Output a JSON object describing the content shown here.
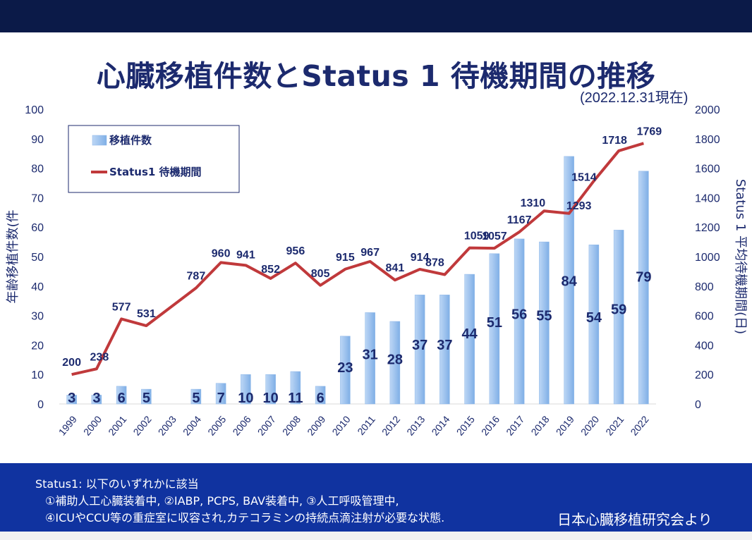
{
  "title": "心臓移植件数とStatus 1 待機期間の推移",
  "date_note": "(2022.12.31現在)",
  "footer": {
    "line1": "Status1: 以下のいずれかに該当",
    "line2": "①補助人工心臓装着中, ②IABP, PCPS, BAV装着中, ③人工呼吸管理中,",
    "line3": "④ICUやCCU等の重症室に収容され,カテコラミンの持続点滴注射が必要な状態.",
    "source": "日本心臓移植研究会より"
  },
  "colors": {
    "bar": "#9fc3ee",
    "line": "#c0393b",
    "text": "#1c2a6e",
    "band": "#0b1a48",
    "footer": "#1033a0"
  },
  "chart_data": {
    "type": "bar+line",
    "categories": [
      "1999",
      "2000",
      "2001",
      "2002",
      "2003",
      "2004",
      "2005",
      "2006",
      "2007",
      "2008",
      "2009",
      "2010",
      "2011",
      "2012",
      "2013",
      "2014",
      "2015",
      "2016",
      "2017",
      "2018",
      "2019",
      "2020",
      "2021",
      "2022"
    ],
    "series": [
      {
        "name": "移植件数",
        "type": "bar",
        "axis": "left",
        "values": [
          3,
          3,
          6,
          5,
          0,
          5,
          7,
          10,
          10,
          11,
          6,
          23,
          31,
          28,
          37,
          37,
          44,
          51,
          56,
          55,
          84,
          54,
          59,
          79
        ],
        "labels": [
          "3",
          "3",
          "6",
          "5",
          null,
          "5",
          "7",
          "10",
          "10",
          "11",
          "6",
          "23",
          "31",
          "28",
          "37",
          "37",
          "44",
          "51",
          "56",
          "55",
          "84",
          "54",
          "59",
          "79"
        ]
      },
      {
        "name": "Status1 待機期間",
        "type": "line",
        "axis": "right",
        "values": [
          200,
          238,
          577,
          531,
          null,
          787,
          960,
          941,
          852,
          956,
          805,
          915,
          967,
          841,
          914,
          878,
          1059,
          1057,
          1167,
          1310,
          1293,
          1514,
          1718,
          1769
        ],
        "labels": [
          "200",
          "238",
          "577",
          "531",
          null,
          "787",
          "960",
          "941",
          "852",
          "956",
          "805",
          "915",
          "967",
          "841",
          "914",
          "878",
          "1059",
          "1057",
          "1167",
          "1310",
          "1293",
          "1514",
          "1718",
          "1769"
        ]
      }
    ],
    "ylabel_left": "年齢移植件数(件",
    "ylabel_right": "Status 1 平均待機期間(日)",
    "ylim_left": [
      0,
      100
    ],
    "ylim_right": [
      0,
      2000
    ],
    "yticks_left": [
      "0",
      "10",
      "20",
      "30",
      "40",
      "50",
      "60",
      "70",
      "80",
      "90",
      "100"
    ],
    "yticks_right": [
      "0",
      "200",
      "400",
      "600",
      "800",
      "1000",
      "1200",
      "1400",
      "1600",
      "1800",
      "2000"
    ],
    "legend_position": "top-left",
    "grid": false
  }
}
